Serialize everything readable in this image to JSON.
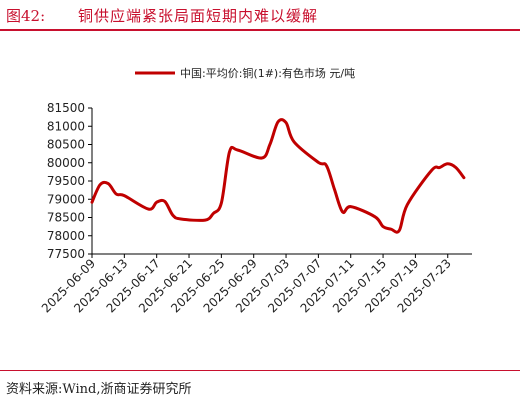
{
  "header": {
    "figure_label": "图42:",
    "title": "铜供应端紧张局面短期内难以缓解"
  },
  "footer": {
    "source": "资料来源:Wind,浙商证券研究所"
  },
  "colors": {
    "accent": "#c8102e",
    "series": "#c00000",
    "axis": "#000000"
  },
  "chart_data": {
    "type": "line",
    "title": "",
    "xlabel": "",
    "ylabel": "",
    "ylim": [
      77500,
      81500
    ],
    "yticks": [
      77500,
      78000,
      78500,
      79000,
      79500,
      80000,
      80500,
      81000,
      81500
    ],
    "grid": false,
    "legend_position": "top-center",
    "xtick_labels": [
      "2025-06-09",
      "2025-06-13",
      "2025-06-17",
      "2025-06-21",
      "2025-06-25",
      "2025-06-29",
      "2025-07-03",
      "2025-07-07",
      "2025-07-11",
      "2025-07-15",
      "2025-07-19",
      "2025-07-23"
    ],
    "x": [
      "2025-06-09",
      "2025-06-10",
      "2025-06-11",
      "2025-06-12",
      "2025-06-13",
      "2025-06-16",
      "2025-06-17",
      "2025-06-18",
      "2025-06-19",
      "2025-06-20",
      "2025-06-23",
      "2025-06-24",
      "2025-06-25",
      "2025-06-26",
      "2025-06-27",
      "2025-06-30",
      "2025-07-01",
      "2025-07-02",
      "2025-07-03",
      "2025-07-04",
      "2025-07-07",
      "2025-07-08",
      "2025-07-09",
      "2025-07-10",
      "2025-07-11",
      "2025-07-14",
      "2025-07-15",
      "2025-07-16",
      "2025-07-17",
      "2025-07-18",
      "2025-07-21",
      "2025-07-22",
      "2025-07-23",
      "2025-07-24",
      "2025-07-25"
    ],
    "series": [
      {
        "name": "中国:平均价:铜(1#):有色市场 元/吨",
        "values": [
          78920,
          79400,
          79430,
          79140,
          79100,
          78730,
          78920,
          78940,
          78560,
          78460,
          78430,
          78610,
          78900,
          80290,
          80350,
          80130,
          80500,
          81120,
          81100,
          80570,
          80010,
          79920,
          79260,
          78650,
          78800,
          78520,
          78250,
          78180,
          78140,
          78850,
          79790,
          79870,
          79970,
          79870,
          79590
        ]
      }
    ]
  }
}
